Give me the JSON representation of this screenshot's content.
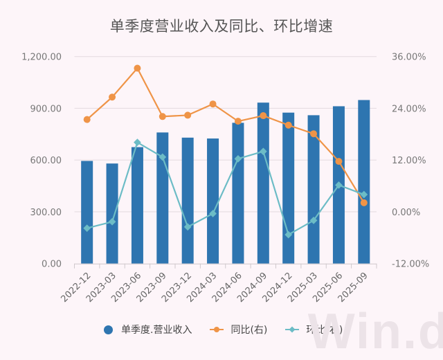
{
  "title": "单季度营业收入及同比、环比增速",
  "watermark": "Win.d",
  "colors": {
    "background": "#fdf5f9",
    "bar": "#2e75b0",
    "yoy": "#ef9447",
    "qoq": "#6cbcc6",
    "grid": "#e6dde2"
  },
  "legend": [
    {
      "label": "单季度.营业收入",
      "type": "dot",
      "color": "#2e75b0"
    },
    {
      "label": "同比(右)",
      "type": "line-circle",
      "color": "#ef9447"
    },
    {
      "label": "环比(右)",
      "type": "line-diamond",
      "color": "#6cbcc6"
    }
  ],
  "chart_data": {
    "type": "bar+line",
    "title": "单季度营业收入及同比、环比增速",
    "categories": [
      "2022-12",
      "2023-03",
      "2023-06",
      "2023-09",
      "2023-12",
      "2024-03",
      "2024-06",
      "2024-09",
      "2024-12",
      "2025-03",
      "2025-06",
      "2025-09"
    ],
    "series": [
      {
        "name": "单季度.营业收入",
        "type": "bar",
        "axis": "left",
        "values": [
          595,
          580,
          675,
          760,
          730,
          725,
          816,
          933,
          875,
          860,
          912,
          948
        ]
      },
      {
        "name": "同比(右)",
        "type": "line",
        "axis": "right",
        "unit": "%",
        "values": [
          21.4,
          26.6,
          33.3,
          22.1,
          22.4,
          25.0,
          21.0,
          22.3,
          20.1,
          18.1,
          11.7,
          2.1
        ]
      },
      {
        "name": "环比(右)",
        "type": "line",
        "axis": "right",
        "unit": "%",
        "values": [
          -3.8,
          -2.3,
          16.1,
          12.7,
          -3.5,
          -0.4,
          12.3,
          14.0,
          -5.3,
          -2.0,
          6.2,
          4.0
        ]
      }
    ],
    "left_axis": {
      "ticks": [
        "0.00",
        "300.00",
        "600.00",
        "900.00",
        "1,200.00"
      ],
      "ylim": [
        0,
        1200
      ]
    },
    "right_axis": {
      "ticks": [
        "-12.00%",
        "0.00%",
        "12.00%",
        "24.00%",
        "36.00%"
      ],
      "ylim": [
        -12,
        36
      ]
    },
    "xlabel": "",
    "ylabel": "",
    "grid": true,
    "legend_position": "bottom"
  }
}
